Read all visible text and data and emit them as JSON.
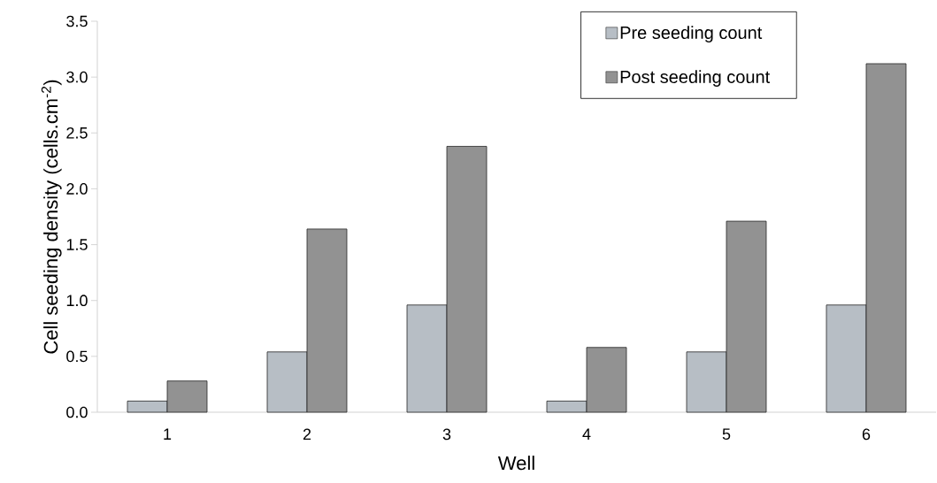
{
  "chart_data": {
    "type": "bar",
    "xlabel": "Well",
    "ylabel": "Cell seeding density (cells.cm$^{-2}$)",
    "categories": [
      "1",
      "2",
      "3",
      "4",
      "5",
      "6"
    ],
    "series": [
      {
        "name": "Pre seeding count",
        "color": "#b7bec5",
        "values": [
          0.1,
          0.54,
          0.96,
          0.1,
          0.54,
          0.96
        ]
      },
      {
        "name": "Post seeding count",
        "color": "#929292",
        "values": [
          0.28,
          1.64,
          2.38,
          0.58,
          1.71,
          3.12
        ]
      }
    ],
    "ylim": [
      0,
      3.5
    ],
    "yticks": [
      {
        "value": 0,
        "label": "0.0"
      },
      {
        "value": 0.5,
        "label": "0.5"
      },
      {
        "value": 1,
        "label": "1.0"
      },
      {
        "value": 1.5,
        "label": "1.5"
      },
      {
        "value": 2,
        "label": "2.0"
      },
      {
        "value": 2.5,
        "label": "2.5"
      },
      {
        "value": 3,
        "label": "3.0"
      },
      {
        "value": 3.5,
        "label": "3.5"
      }
    ],
    "grid": false,
    "legend": "top right"
  }
}
